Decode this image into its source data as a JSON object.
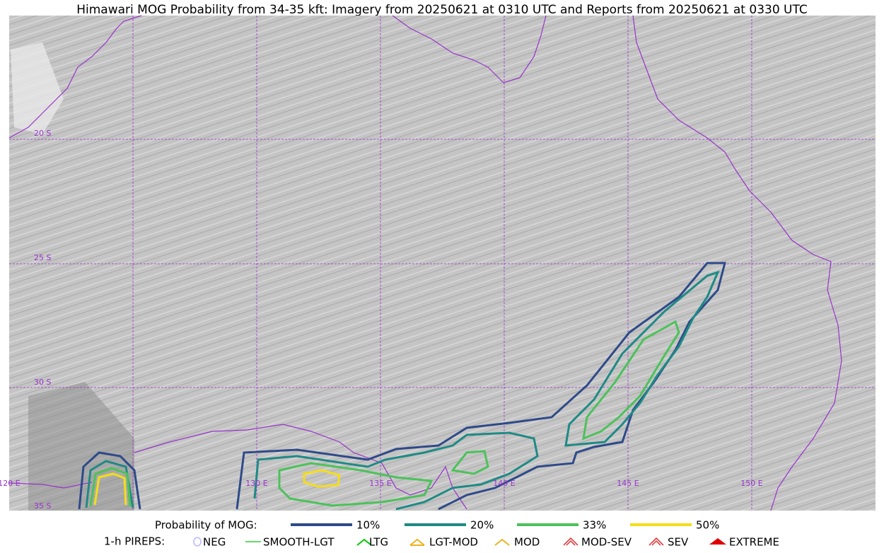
{
  "title": "Himawari MOG Probability from 34-35 kft: Imagery from 20250621 at 0310 UTC and Reports from 20250621 at 0330 UTC",
  "map": {
    "latitude_labels": [
      "20 S",
      "25 S",
      "30 S",
      "35 S"
    ],
    "longitude_labels": [
      "120 E",
      "130 E",
      "135 E",
      "140 E",
      "145 E",
      "150 E"
    ]
  },
  "legend": {
    "probability_title": "Probability of MOG:",
    "probability_items": [
      {
        "label": "10%",
        "color": "#2e4a8a"
      },
      {
        "label": "20%",
        "color": "#1f8a85"
      },
      {
        "label": "33%",
        "color": "#4cc25a"
      },
      {
        "label": "50%",
        "color": "#f5dd1a"
      }
    ],
    "pireps_title": "1-h PIREPS:",
    "pireps_items": [
      {
        "label": "NEG",
        "color": "#b8b8ff"
      },
      {
        "label": "SMOOTH-LGT",
        "color": "#33cc33"
      },
      {
        "label": "LTG",
        "color": "#00cc00"
      },
      {
        "label": "LGT-MOD",
        "color": "#f0b020"
      },
      {
        "label": "MOD",
        "color": "#f0b020"
      },
      {
        "label": "MOD-SEV",
        "color": "#e03030"
      },
      {
        "label": "SEV",
        "color": "#e03030"
      },
      {
        "label": "EXTREME",
        "color": "#e00000"
      }
    ]
  }
}
